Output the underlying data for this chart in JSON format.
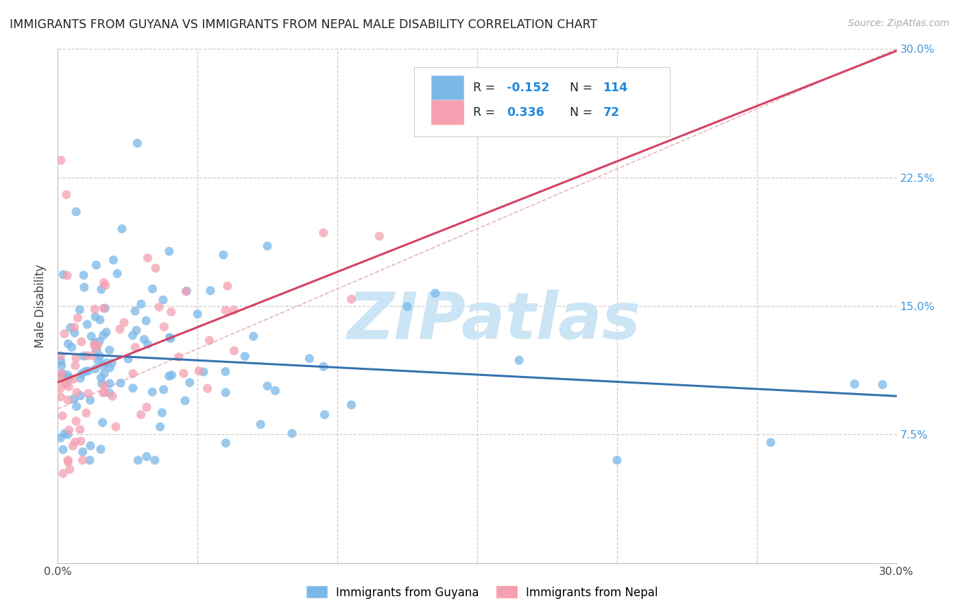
{
  "title": "IMMIGRANTS FROM GUYANA VS IMMIGRANTS FROM NEPAL MALE DISABILITY CORRELATION CHART",
  "source": "Source: ZipAtlas.com",
  "ylabel": "Male Disability",
  "x_min": 0.0,
  "x_max": 0.3,
  "y_min": 0.0,
  "y_max": 0.3,
  "x_ticks": [
    0.0,
    0.05,
    0.1,
    0.15,
    0.2,
    0.25,
    0.3
  ],
  "x_tick_labels": [
    "0.0%",
    "",
    "",
    "",
    "",
    "",
    "30.0%"
  ],
  "y_tick_labels_right": [
    "7.5%",
    "15.0%",
    "22.5%",
    "30.0%"
  ],
  "y_tick_vals_right": [
    0.075,
    0.15,
    0.225,
    0.3
  ],
  "guyana_color": "#7ab8e8",
  "nepal_color": "#f4a0b0",
  "guyana_line_color": "#3572b0",
  "nepal_line_color": "#d44060",
  "trendline_dash_color": "#e0a0b0",
  "R_guyana": -0.152,
  "N_guyana": 114,
  "R_nepal": 0.336,
  "N_nepal": 72,
  "watermark_text": "ZIPatlas",
  "watermark_color": "#cce5f5",
  "background_color": "#ffffff",
  "grid_color": "#cccccc",
  "right_tick_color": "#4499dd",
  "legend_text_dark": "#222222",
  "legend_text_blue": "#2288dd"
}
